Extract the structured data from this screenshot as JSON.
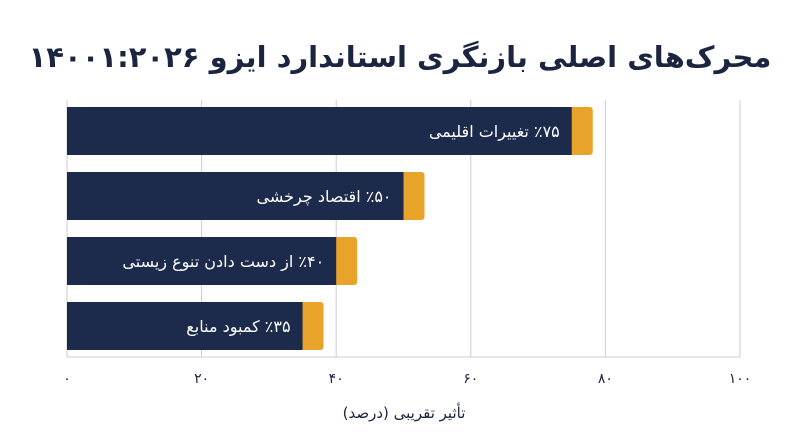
{
  "chart_data": {
    "type": "bar",
    "orientation": "horizontal",
    "title": "محرک‌های اصلی بازنگری استاندارد ایزو ۱۴۰۰۱:۲۰۲۶",
    "xlabel": "تأثیر تقریبی (درصد)",
    "ylabel": "",
    "xlim": [
      0,
      100
    ],
    "x_ticks": [
      0,
      20,
      40,
      60,
      80,
      100
    ],
    "x_tick_labels": [
      "۰",
      "۲۰",
      "۴۰",
      "۶۰",
      "۸۰",
      "۱۰۰"
    ],
    "grid": true,
    "categories": [
      "٪۷۵ تغییرات اقلیمی",
      "٪۵۰ اقتصاد چرخشی",
      "٪۴۰ از دست دادن تنوع زیستی",
      "٪۳۵ کمبود منابع"
    ],
    "values": [
      75,
      50,
      40,
      35
    ],
    "colors": {
      "bar": "#1c2a4c",
      "accent": "#e8a32b",
      "text": "#1b2540",
      "grid": "#c9cdd6"
    }
  }
}
